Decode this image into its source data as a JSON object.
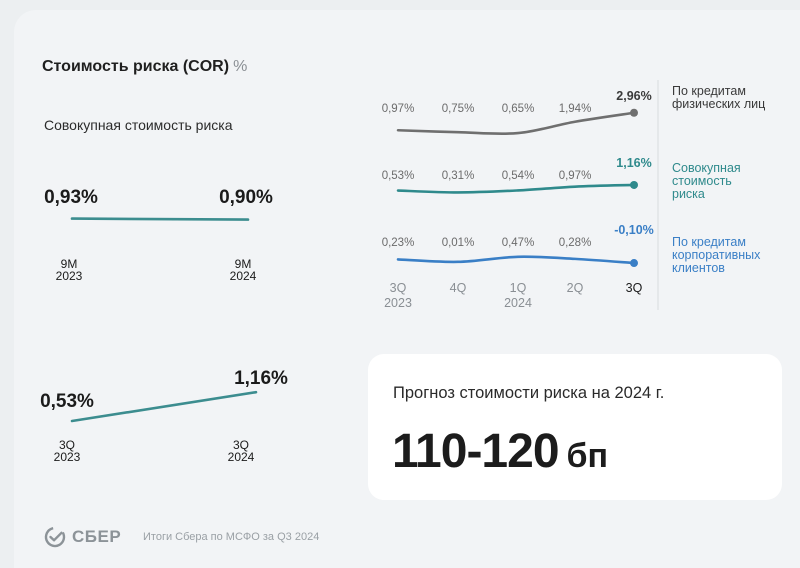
{
  "header": {
    "title": "Стоимость риска (COR)",
    "unit": "%",
    "subtitle": "Совокупная стоимость риска"
  },
  "colors": {
    "gray": "#6f6f6f",
    "teal": "#2f8a8c",
    "blue": "#3a7fc6",
    "total_line": "#3c8d8f"
  },
  "chart_data": [
    {
      "type": "line",
      "title": "Совокупная стоимость риска",
      "categories": [
        [
          "9M",
          "2023"
        ],
        [
          "9M",
          "2024"
        ]
      ],
      "values": [
        0.93,
        0.9
      ],
      "labels": [
        "0,93%",
        "0,90%"
      ]
    },
    {
      "type": "line",
      "categories": [
        [
          "3Q",
          "2023"
        ],
        [
          "3Q",
          "2024"
        ]
      ],
      "values": [
        0.53,
        1.16
      ],
      "labels": [
        "0,53%",
        "1,16%"
      ]
    },
    {
      "type": "line",
      "categories": [
        [
          "3Q",
          "2023"
        ],
        [
          "4Q",
          ""
        ],
        [
          "1Q",
          "2024"
        ],
        [
          "2Q",
          ""
        ],
        [
          "3Q",
          ""
        ]
      ],
      "series": [
        {
          "name": "По кредитам физических лиц",
          "name_lines": [
            "По кредитам",
            "физических лиц"
          ],
          "values": [
            0.97,
            0.75,
            0.65,
            1.94,
            2.96
          ],
          "labels": [
            "0,97%",
            "0,75%",
            "0,65%",
            "1,94%",
            "2,96%"
          ]
        },
        {
          "name": "Совокупная стоимость риска",
          "name_lines": [
            "Совокупная",
            "стоимость",
            "риска"
          ],
          "values": [
            0.53,
            0.31,
            0.54,
            0.97,
            1.16
          ],
          "labels": [
            "0,53%",
            "0,31%",
            "0,54%",
            "0,97%",
            "1,16%"
          ]
        },
        {
          "name": "По кредитам корпоративных клиентов",
          "name_lines": [
            "По кредитам",
            "корпоративных",
            "клиентов"
          ],
          "values": [
            0.23,
            0.01,
            0.47,
            0.28,
            -0.1
          ],
          "labels": [
            "0,23%",
            "0,01%",
            "0,47%",
            "0,28%",
            "-0,10%"
          ]
        }
      ]
    }
  ],
  "forecast": {
    "title": "Прогноз стоимости риска на 2024 г.",
    "value": "110-120",
    "unit": "бп"
  },
  "footer": {
    "logo": "СБЕР",
    "text": "Итоги Сбера по МСФО за Q3 2024"
  }
}
